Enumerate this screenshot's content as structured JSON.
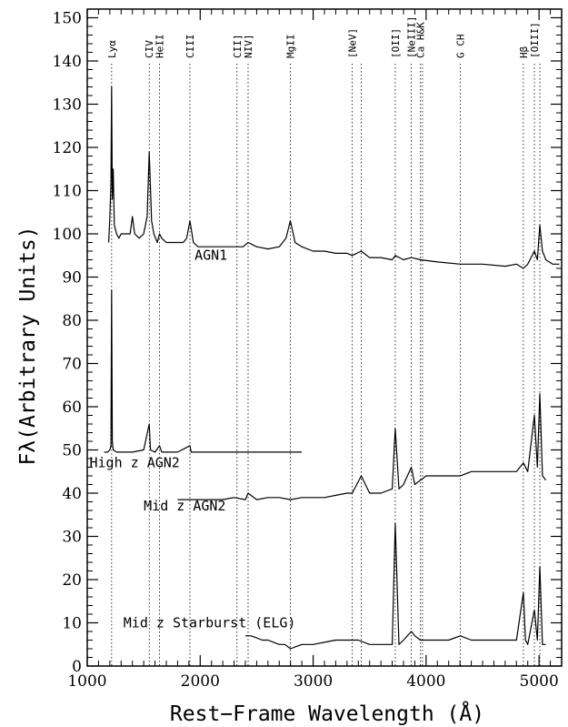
{
  "chart_data": {
    "type": "line",
    "xlabel": "Rest−Frame Wavelength (Å)",
    "ylabel": "Fλ(Arbitrary Units)",
    "xlim": [
      1000,
      5200
    ],
    "ylim": [
      0,
      152
    ],
    "xticks": [
      1000,
      2000,
      3000,
      4000,
      5000
    ],
    "yticks": [
      0,
      10,
      20,
      30,
      40,
      50,
      60,
      70,
      80,
      90,
      100,
      110,
      120,
      130,
      140,
      150
    ],
    "grid": false,
    "emission_lines": [
      {
        "label": "Lyα",
        "x": 1216
      },
      {
        "label": "CIV",
        "x": 1549
      },
      {
        "label": "HeII",
        "x": 1640
      },
      {
        "label": "CIII",
        "x": 1909
      },
      {
        "label": "CII]",
        "x": 2326
      },
      {
        "label": "NIV]",
        "x": 2424
      },
      {
        "label": "MgII",
        "x": 2798
      },
      {
        "label": "[NeV]",
        "x": 3346
      },
      {
        "label": "",
        "x": 3426
      },
      {
        "label": "[OII]",
        "x": 3727
      },
      {
        "label": "[NeIII]",
        "x": 3869
      },
      {
        "label": "Ca H&K",
        "x": 3950
      },
      {
        "label": "",
        "x": 3968
      },
      {
        "label": "G CH",
        "x": 4304
      },
      {
        "label": "Hβ",
        "x": 4861
      },
      {
        "label": "[OIII]",
        "x": 4959
      },
      {
        "label": "",
        "x": 5007
      }
    ],
    "series": [
      {
        "name": "AGN1",
        "label_pos": [
          1950,
          94
        ],
        "x": [
          1190,
          1200,
          1210,
          1216,
          1222,
          1230,
          1240,
          1250,
          1260,
          1280,
          1300,
          1340,
          1380,
          1400,
          1420,
          1460,
          1500,
          1530,
          1549,
          1570,
          1590,
          1620,
          1640,
          1660,
          1700,
          1750,
          1800,
          1850,
          1880,
          1909,
          1940,
          1980,
          2050,
          2150,
          2250,
          2326,
          2380,
          2424,
          2500,
          2600,
          2700,
          2760,
          2798,
          2840,
          2900,
          3000,
          3100,
          3200,
          3300,
          3346,
          3426,
          3500,
          3600,
          3700,
          3727,
          3800,
          3869,
          3950,
          4100,
          4304,
          4500,
          4700,
          4800,
          4861,
          4900,
          4959,
          4985,
          5007,
          5030,
          5060,
          5120,
          5180
        ],
        "y": [
          98,
          104,
          112,
          134,
          108,
          115,
          102,
          101,
          100,
          99,
          100,
          100,
          100,
          104,
          100,
          99,
          100,
          104,
          119,
          103,
          100,
          98,
          100,
          99,
          98,
          98,
          98,
          98,
          99,
          103,
          98,
          97,
          97,
          97,
          97,
          97,
          97,
          98,
          97,
          96.5,
          97,
          99,
          103,
          98,
          97,
          96,
          96,
          95.5,
          95.5,
          95,
          96,
          94.5,
          94.5,
          94,
          95,
          94,
          94.5,
          94,
          93.5,
          93,
          93,
          92.5,
          93,
          92,
          93,
          96,
          94,
          102,
          96,
          94,
          93,
          93
        ]
      },
      {
        "name": "High z AGN2",
        "label_pos": [
          1020,
          46
        ],
        "x": [
          1150,
          1180,
          1200,
          1210,
          1216,
          1222,
          1230,
          1260,
          1300,
          1400,
          1500,
          1549,
          1560,
          1600,
          1640,
          1660,
          1700,
          1800,
          1909,
          1920,
          2000,
          2200,
          2400,
          2600,
          2800,
          2900
        ],
        "y": [
          49.5,
          49.5,
          50,
          51,
          87,
          52,
          50,
          49.5,
          49.5,
          49.5,
          50,
          56,
          50,
          49.5,
          51,
          49.5,
          49.5,
          49.5,
          51,
          49.5,
          49.5,
          49.5,
          49.5,
          49.5,
          49.5,
          49.5
        ]
      },
      {
        "name": "Mid z AGN2",
        "label_pos": [
          1500,
          36
        ],
        "x": [
          1800,
          1900,
          2000,
          2100,
          2200,
          2300,
          2400,
          2424,
          2500,
          2600,
          2700,
          2800,
          2900,
          3000,
          3100,
          3200,
          3300,
          3346,
          3426,
          3500,
          3600,
          3700,
          3727,
          3760,
          3800,
          3869,
          3900,
          3950,
          4000,
          4100,
          4200,
          4304,
          4400,
          4500,
          4600,
          4700,
          4800,
          4861,
          4900,
          4959,
          4985,
          5007,
          5030,
          5060
        ],
        "y": [
          38.5,
          38.5,
          38.5,
          38.5,
          38.5,
          39,
          38.5,
          40,
          38.5,
          39,
          39,
          38.5,
          39,
          39,
          39,
          39.5,
          40,
          40,
          44,
          40,
          40,
          41,
          55,
          41,
          42,
          46,
          42,
          43,
          44,
          44,
          44,
          44,
          45,
          45,
          45,
          45,
          45,
          47,
          45,
          58,
          46,
          63,
          44,
          43
        ]
      },
      {
        "name": "Mid z Starburst (ELG)",
        "label_pos": [
          1320,
          9
        ],
        "x": [
          2400,
          2450,
          2500,
          2550,
          2600,
          2650,
          2700,
          2750,
          2800,
          2850,
          2900,
          3000,
          3100,
          3200,
          3300,
          3400,
          3500,
          3600,
          3700,
          3727,
          3760,
          3800,
          3869,
          3900,
          3950,
          4000,
          4100,
          4200,
          4304,
          4400,
          4500,
          4600,
          4700,
          4800,
          4861,
          4880,
          4900,
          4959,
          4985,
          5007,
          5030,
          5060
        ],
        "y": [
          7,
          7,
          6.5,
          6,
          6,
          5.5,
          5,
          5,
          4,
          4.5,
          5,
          5,
          5.5,
          6,
          6,
          6,
          5,
          5,
          5,
          33,
          5,
          6,
          8,
          7,
          6,
          6,
          6,
          6,
          7,
          6,
          6,
          6,
          6,
          6,
          17,
          6,
          5,
          13,
          6,
          23,
          5,
          5
        ]
      }
    ]
  }
}
